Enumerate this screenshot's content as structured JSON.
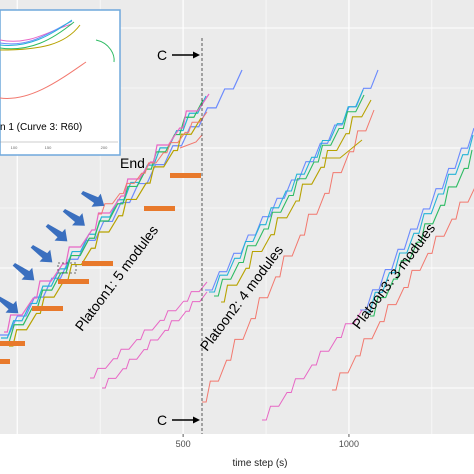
{
  "chart_data": {
    "type": "line",
    "xlabel": "time step (s)",
    "ylabel": "",
    "xlim": [
      -52,
      1377
    ],
    "x_ticks": [
      {
        "value": 500,
        "label": "500"
      },
      {
        "value": 1000,
        "label": "1000"
      }
    ],
    "grid": true,
    "panel_color": "#ebebeb",
    "annotations": {
      "section_top": "C",
      "section_bottom": "C",
      "section_time": 635,
      "end_label": "End",
      "platoons": [
        {
          "label": "Platoon1: 5 modules",
          "color": "#e8792b"
        },
        {
          "label": "Platoon2: 4 modules"
        },
        {
          "label": "Platoon3: 3 modules"
        }
      ],
      "inset_caption": "n 1 (Curve 3: R60)",
      "inset_ticks": [
        "100",
        "150",
        "200"
      ]
    },
    "series_colors": [
      "#f2786e",
      "#b7a200",
      "#2dbb63",
      "#25b4d6",
      "#6b8afd",
      "#e867c5"
    ]
  }
}
